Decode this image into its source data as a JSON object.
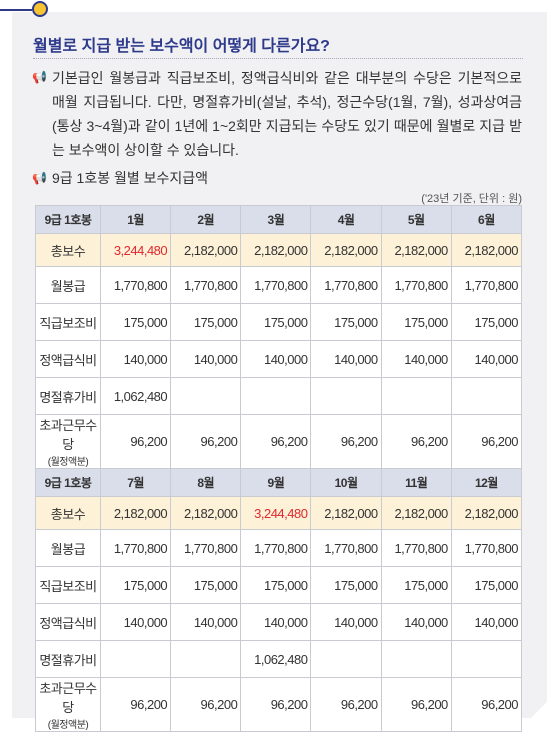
{
  "header": {
    "title": "월별로 지급 받는 보수액이 어떻게 다른가요?"
  },
  "paragraph": "기본급인 월봉급과 직급보조비, 정액급식비와 같은 대부분의 수당은 기본적으로 매월 지급됩니다. 다만, 명절휴가비(설날, 추석), 정근수당(1월, 7월), 성과상여금(통상 3~4월)과 같이 1년에 1~2회만 지급되는 수당도 있기 때문에 월별로 지급 받는 보수액이 상이할 수 있습니다.",
  "subheading": "9급 1호봉 월별 보수지급액",
  "unit_note": "('23년 기준, 단위 : 원)",
  "highlight_color": "#e0282e",
  "table": {
    "blocks": [
      {
        "header": [
          "9급 1호봉",
          "1월",
          "2월",
          "3월",
          "4월",
          "5월",
          "6월"
        ],
        "rows": [
          {
            "label": "총보수",
            "cells": [
              "3,244,480",
              "2,182,000",
              "2,182,000",
              "2,182,000",
              "2,182,000",
              "2,182,000"
            ],
            "highlight": 0
          },
          {
            "label": "월봉급",
            "cells": [
              "1,770,800",
              "1,770,800",
              "1,770,800",
              "1,770,800",
              "1,770,800",
              "1,770,800"
            ]
          },
          {
            "label": "직급보조비",
            "cells": [
              "175,000",
              "175,000",
              "175,000",
              "175,000",
              "175,000",
              "175,000"
            ]
          },
          {
            "label": "정액급식비",
            "cells": [
              "140,000",
              "140,000",
              "140,000",
              "140,000",
              "140,000",
              "140,000"
            ]
          },
          {
            "label": "명절휴가비",
            "cells": [
              "1,062,480",
              null,
              null,
              null,
              null,
              null
            ]
          },
          {
            "label": "초과근무수당",
            "sub": "(월정액분)",
            "cells": [
              "96,200",
              "96,200",
              "96,200",
              "96,200",
              "96,200",
              "96,200"
            ]
          }
        ]
      },
      {
        "header": [
          "9급 1호봉",
          "7월",
          "8월",
          "9월",
          "10월",
          "11월",
          "12월"
        ],
        "rows": [
          {
            "label": "총보수",
            "cells": [
              "2,182,000",
              "2,182,000",
              "3,244,480",
              "2,182,000",
              "2,182,000",
              "2,182,000"
            ],
            "highlight": 2
          },
          {
            "label": "월봉급",
            "cells": [
              "1,770,800",
              "1,770,800",
              "1,770,800",
              "1,770,800",
              "1,770,800",
              "1,770,800"
            ]
          },
          {
            "label": "직급보조비",
            "cells": [
              "175,000",
              "175,000",
              "175,000",
              "175,000",
              "175,000",
              "175,000"
            ]
          },
          {
            "label": "정액급식비",
            "cells": [
              "140,000",
              "140,000",
              "140,000",
              "140,000",
              "140,000",
              "140,000"
            ]
          },
          {
            "label": "명절휴가비",
            "cells": [
              null,
              null,
              "1,062,480",
              null,
              null,
              null
            ]
          },
          {
            "label": "초과근무수당",
            "sub": "(월정액분)",
            "cells": [
              "96,200",
              "96,200",
              "96,200",
              "96,200",
              "96,200",
              "96,200"
            ]
          }
        ]
      }
    ]
  }
}
